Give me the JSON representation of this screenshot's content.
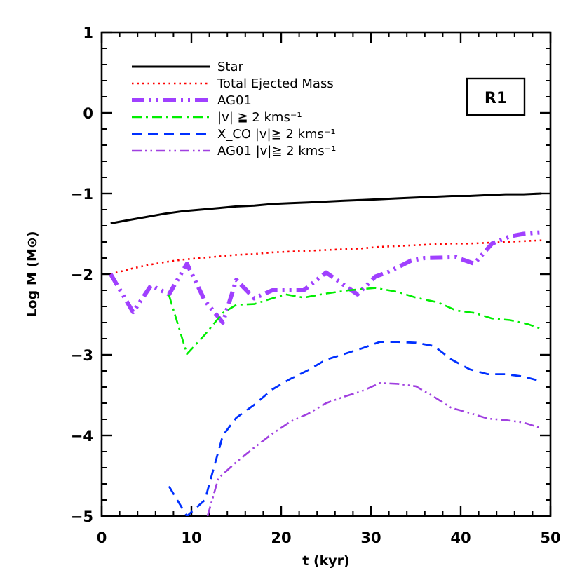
{
  "chart_data": {
    "type": "line",
    "title": "",
    "xlabel": "t (kyr)",
    "ylabel": "Log M (M⊙)",
    "xlim": [
      0,
      50
    ],
    "ylim": [
      -5,
      1
    ],
    "x_ticks": [
      0,
      10,
      20,
      30,
      40,
      50
    ],
    "y_ticks": [
      -5,
      -4,
      -3,
      -2,
      -1,
      0,
      1
    ],
    "grid": false,
    "legend_placement": "top-left",
    "annotation": "R1",
    "series": [
      {
        "name": "Star",
        "color": "#000000",
        "style": "solid",
        "x": [
          1,
          3,
          5,
          7,
          9,
          11,
          13,
          15,
          17,
          19,
          21,
          23,
          25,
          27,
          29,
          31,
          33,
          35,
          37,
          39,
          41,
          43,
          45,
          47,
          49
        ],
        "y": [
          -1.37,
          -1.33,
          -1.29,
          -1.25,
          -1.22,
          -1.2,
          -1.18,
          -1.16,
          -1.15,
          -1.13,
          -1.12,
          -1.11,
          -1.1,
          -1.09,
          -1.08,
          -1.07,
          -1.06,
          -1.05,
          -1.04,
          -1.03,
          -1.03,
          -1.02,
          -1.01,
          -1.01,
          -1.0
        ]
      },
      {
        "name": "Total Ejected Mass",
        "color": "#ff0000",
        "style": "dotted",
        "x": [
          1,
          3,
          5,
          7,
          9,
          11,
          13,
          15,
          17,
          19,
          21,
          23,
          25,
          27,
          29,
          31,
          33,
          35,
          37,
          39,
          41,
          43,
          45,
          47,
          49
        ],
        "y": [
          -2.0,
          -1.94,
          -1.89,
          -1.85,
          -1.82,
          -1.8,
          -1.78,
          -1.76,
          -1.75,
          -1.73,
          -1.72,
          -1.71,
          -1.7,
          -1.69,
          -1.68,
          -1.66,
          -1.65,
          -1.64,
          -1.63,
          -1.62,
          -1.62,
          -1.61,
          -1.6,
          -1.59,
          -1.58
        ]
      },
      {
        "name": "AG01",
        "color": "#a040ff",
        "style": "dash-dot-dot-thick",
        "x": [
          1,
          3.5,
          5.5,
          7.5,
          9.5,
          11.5,
          13.5,
          15,
          17,
          19,
          22.5,
          25,
          28.5,
          30.5,
          32,
          34.5,
          36,
          39.5,
          41.5,
          43.5,
          45.5,
          47,
          49
        ],
        "y": [
          -2.0,
          -2.47,
          -2.14,
          -2.25,
          -1.87,
          -2.33,
          -2.6,
          -2.07,
          -2.3,
          -2.2,
          -2.2,
          -1.98,
          -2.25,
          -2.03,
          -1.97,
          -1.83,
          -1.8,
          -1.79,
          -1.87,
          -1.62,
          -1.53,
          -1.5,
          -1.48
        ]
      },
      {
        "name": "|v| ≧ 2 kms⁻¹",
        "color": "#00ee00",
        "style": "dash-dot",
        "x": [
          7.5,
          9.5,
          11.5,
          13.5,
          15,
          17,
          19,
          20.5,
          22.5,
          25,
          27.5,
          30.5,
          33,
          35,
          37.5,
          39.5,
          41.5,
          43.5,
          45.5,
          47.5,
          49
        ],
        "y": [
          -2.26,
          -2.99,
          -2.75,
          -2.48,
          -2.38,
          -2.37,
          -2.3,
          -2.25,
          -2.29,
          -2.24,
          -2.2,
          -2.17,
          -2.22,
          -2.29,
          -2.35,
          -2.45,
          -2.48,
          -2.55,
          -2.57,
          -2.62,
          -2.68
        ]
      },
      {
        "name": "X_CO |v|≧ 2 kms⁻¹",
        "color": "#0030ff",
        "style": "dashed",
        "x": [
          7.5,
          9.5,
          11.5,
          13.5,
          15,
          17,
          19,
          21,
          23,
          25,
          27,
          29,
          31,
          33,
          35,
          37,
          39,
          41,
          43,
          45,
          47,
          49
        ],
        "y": [
          -4.63,
          -5.0,
          -4.8,
          -4.0,
          -3.78,
          -3.62,
          -3.43,
          -3.3,
          -3.19,
          -3.06,
          -2.99,
          -2.92,
          -2.84,
          -2.84,
          -2.85,
          -2.89,
          -3.06,
          -3.18,
          -3.24,
          -3.24,
          -3.27,
          -3.33
        ]
      },
      {
        "name": "AG01 |v|≧ 2 kms⁻¹",
        "color": "#a040e0",
        "style": "dash-dot-dot",
        "x": [
          11.8,
          13,
          15,
          17,
          19,
          21,
          23,
          25,
          27,
          29,
          31,
          33,
          35,
          37,
          39,
          41,
          43,
          45,
          47,
          49
        ],
        "y": [
          -5.0,
          -4.53,
          -4.33,
          -4.15,
          -3.98,
          -3.83,
          -3.73,
          -3.6,
          -3.52,
          -3.45,
          -3.35,
          -3.36,
          -3.39,
          -3.52,
          -3.66,
          -3.72,
          -3.79,
          -3.81,
          -3.84,
          -3.91
        ]
      }
    ]
  }
}
